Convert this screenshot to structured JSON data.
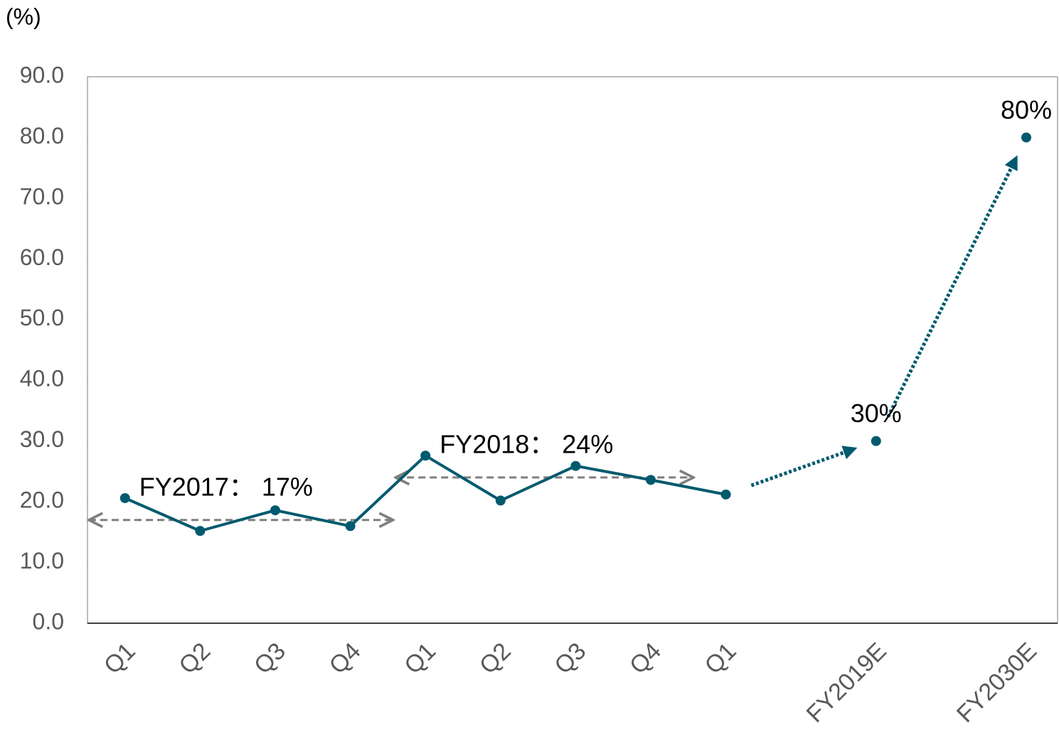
{
  "chart_data": {
    "type": "line",
    "y_axis_label": "(%)",
    "categories": [
      "Q1",
      "Q2",
      "Q3",
      "Q4",
      "Q1",
      "Q2",
      "Q3",
      "Q4",
      "Q1",
      "FY2019E",
      "FY2030E"
    ],
    "series": [
      {
        "color": "#005a6e",
        "style": "solid",
        "values": [
          20.6,
          15.2,
          18.6,
          16.0,
          27.6,
          20.2,
          25.9,
          23.6,
          21.2,
          null,
          null
        ]
      },
      {
        "color": "#005a6e",
        "style": "dotted",
        "values": [
          null,
          null,
          null,
          null,
          null,
          null,
          null,
          null,
          null,
          30,
          80
        ],
        "value_labels": [
          null,
          null,
          null,
          null,
          null,
          null,
          null,
          null,
          null,
          "30%",
          "80%"
        ]
      }
    ],
    "annotations": [
      {
        "text": "FY2017： 17%",
        "value": 17,
        "color": "#7f7f7f"
      },
      {
        "text": "FY2018： 24%",
        "value": 24,
        "color": "#7f7f7f"
      }
    ],
    "ylim": [
      0,
      90
    ],
    "yticks": [
      {
        "value": 0,
        "label": "0.0"
      },
      {
        "value": 10,
        "label": "10.0"
      },
      {
        "value": 20,
        "label": "20.0"
      },
      {
        "value": 30,
        "label": "30.0"
      },
      {
        "value": 40,
        "label": "40.0"
      },
      {
        "value": 50,
        "label": "50.0"
      },
      {
        "value": 60,
        "label": "60.0"
      },
      {
        "value": 70,
        "label": "70.0"
      },
      {
        "value": 80,
        "label": "80.0"
      },
      {
        "value": 90,
        "label": "90.0"
      }
    ],
    "grid": false
  }
}
